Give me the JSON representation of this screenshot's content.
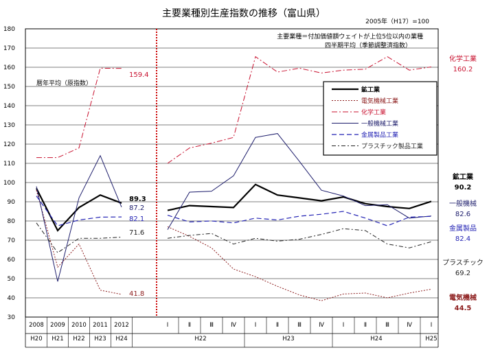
{
  "chart_data": {
    "type": "line",
    "title": "主要業種別生産指数の推移（富山県）",
    "base_note": "2005年（H17）=100",
    "note_lines": [
      "主要業種＝付加価値額ウェイトが上位5位以内の業種",
      "四半期平均（季節調整済指数）"
    ],
    "annual_note": "暦年平均（原指数）",
    "ylim": [
      30,
      180
    ],
    "yticks": [
      "180",
      "170",
      "160",
      "150",
      "140",
      "130",
      "120",
      "110",
      "100",
      "90",
      "80",
      "70",
      "60",
      "50",
      "40",
      "30"
    ],
    "grid": true,
    "legend_position": "top-right",
    "x_annual": {
      "years": [
        "2008",
        "2009",
        "2010",
        "2011",
        "2012"
      ],
      "eras": [
        "H20",
        "H21",
        "H22",
        "H23",
        "H24"
      ]
    },
    "x_quarterly": {
      "quarters": [
        "Ⅰ",
        "Ⅱ",
        "Ⅲ",
        "Ⅳ",
        "Ⅰ",
        "Ⅱ",
        "Ⅲ",
        "Ⅳ",
        "Ⅰ",
        "Ⅱ",
        "Ⅲ",
        "Ⅳ",
        "Ⅰ"
      ],
      "era_labels": [
        "H22",
        "H23",
        "H24",
        "H25"
      ]
    },
    "series": [
      {
        "name": "鉱工業",
        "color": "#000000",
        "annual": [
          97,
          75,
          87,
          93.5,
          89.3
        ],
        "quarterly": [
          85.5,
          88,
          87.5,
          87,
          99,
          93.5,
          92,
          90.5,
          92.5,
          89,
          87.5,
          86.5,
          90.2
        ],
        "end_label": "鉱工業",
        "end_value": "90.2",
        "annual_label": "89.3"
      },
      {
        "name": "電気機械工業",
        "color": "#8b1a1a",
        "annual": [
          96,
          56,
          68,
          44,
          41.8
        ],
        "quarterly": [
          77,
          72,
          66,
          55,
          51,
          46,
          41.5,
          38.5,
          42,
          42.5,
          40,
          42.5,
          44.5
        ],
        "end_label": "電気機械",
        "end_value": "44.5",
        "annual_label": "41.8"
      },
      {
        "name": "化学工業",
        "color": "#c8102e",
        "annual": [
          113,
          113,
          118,
          159.5,
          159.4
        ],
        "quarterly": [
          110,
          118,
          120.5,
          123.5,
          165.5,
          157.5,
          159.5,
          157,
          158.5,
          159,
          165.5,
          158.5,
          160.2
        ],
        "end_label": "化学工業",
        "end_value": "160.2",
        "annual_label": "159.4"
      },
      {
        "name": "一般機械工業",
        "color": "#1c1c6b",
        "annual": [
          98,
          48.5,
          92,
          114,
          87.2
        ],
        "quarterly": [
          75.5,
          95,
          95.5,
          103.5,
          123.5,
          125.5,
          111,
          96,
          93,
          88,
          88.5,
          81.5,
          82.6
        ],
        "end_label": "一般機械",
        "end_value": "82.6",
        "annual_label": "87.2"
      },
      {
        "name": "金属製品工業",
        "color": "#2323b4",
        "annual": [
          93,
          77.5,
          80.5,
          82,
          82.1
        ],
        "quarterly": [
          83,
          79.5,
          80,
          79,
          81.5,
          80.5,
          82.5,
          83.5,
          85,
          81.5,
          77.5,
          82,
          82.4
        ],
        "end_label": "金属製品",
        "end_value": "82.4",
        "annual_label": "82.1"
      },
      {
        "name": "プラスチック製品工業",
        "color": "#222222",
        "annual": [
          79,
          63.5,
          71,
          71,
          71.6
        ],
        "quarterly": [
          71,
          72.5,
          73.5,
          68,
          71,
          69.5,
          70.5,
          73,
          76,
          75,
          68,
          66,
          69.2
        ],
        "end_label": "プラスチック",
        "end_value": "69.2",
        "annual_label": "71.6"
      }
    ]
  }
}
